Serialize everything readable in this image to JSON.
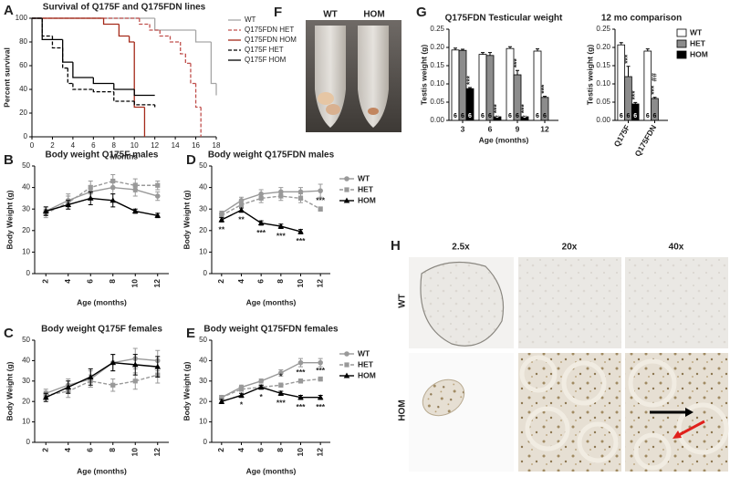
{
  "chart_data": [
    {
      "type": "step",
      "panel": "A",
      "title": "Survival of Q175F and Q175FDN lines",
      "x_label": "Months",
      "y_label": "Percent survival",
      "xlim": [
        0,
        18
      ],
      "xticks": [
        0,
        2,
        4,
        6,
        8,
        10,
        12,
        14,
        16,
        18
      ],
      "ylim": [
        0,
        100
      ],
      "yticks": [
        0,
        20,
        40,
        60,
        80,
        100
      ],
      "series": [
        {
          "name": "WT",
          "color": "#a6a6a6",
          "dash": false,
          "x": [
            0,
            12,
            16,
            17.5,
            18
          ],
          "values": [
            100,
            90,
            80,
            45,
            35
          ]
        },
        {
          "name": "Q175FDN HET",
          "color": "#c0504d",
          "dash": true,
          "x": [
            0,
            10.5,
            11.5,
            12.5,
            13.5,
            14.5,
            15,
            15.5,
            16,
            16.5
          ],
          "values": [
            100,
            95,
            90,
            85,
            80,
            70,
            62,
            45,
            25,
            0
          ]
        },
        {
          "name": "Q175FDN HOM",
          "color": "#a52a1a",
          "dash": false,
          "x": [
            0,
            7,
            8.5,
            9.5,
            10,
            11
          ],
          "values": [
            100,
            95,
            85,
            80,
            25,
            0
          ]
        },
        {
          "name": "Q175F HET",
          "color": "#000000",
          "dash": true,
          "x": [
            0,
            1,
            2,
            3,
            3.5,
            4,
            6,
            8,
            10,
            12
          ],
          "values": [
            100,
            85,
            75,
            58,
            45,
            40,
            38,
            30,
            27,
            25
          ]
        },
        {
          "name": "Q175F HOM",
          "color": "#000000",
          "dash": false,
          "x": [
            0,
            1,
            3,
            4,
            6,
            8,
            10,
            12
          ],
          "values": [
            100,
            82,
            63,
            50,
            45,
            40,
            35,
            35
          ]
        }
      ]
    },
    {
      "type": "line",
      "panel": "B",
      "title": "Body weight Q175F males",
      "x_label": "Age (months)",
      "y_label": "Body Weight (g)",
      "categories": [
        "2",
        "4",
        "6",
        "8",
        "10",
        "12"
      ],
      "ylim": [
        0,
        50
      ],
      "yticks": [
        0,
        10,
        20,
        30,
        40,
        50
      ],
      "series": [
        {
          "color": "#999999",
          "dash": false,
          "marker": "circle",
          "values": [
            29,
            34,
            38,
            40,
            39,
            36
          ],
          "errors": [
            2,
            3,
            3,
            3,
            3,
            2
          ]
        },
        {
          "color": "#999999",
          "dash": true,
          "marker": "square",
          "values": [
            28,
            33,
            40,
            43,
            41,
            41
          ],
          "errors": [
            2,
            3,
            3,
            3,
            3,
            2
          ]
        },
        {
          "color": "#000000",
          "dash": false,
          "marker": "triangle",
          "values": [
            29,
            32,
            35,
            34,
            29,
            27
          ],
          "errors": [
            2,
            2,
            3,
            3,
            1,
            1
          ]
        }
      ]
    },
    {
      "type": "line",
      "panel": "C",
      "title": "Body weight Q175F females",
      "x_label": "Age (months)",
      "y_label": "Body Weight (g)",
      "categories": [
        "2",
        "4",
        "6",
        "8",
        "10",
        "12"
      ],
      "ylim": [
        0,
        50
      ],
      "yticks": [
        0,
        10,
        20,
        30,
        40,
        50
      ],
      "series": [
        {
          "color": "#999999",
          "dash": false,
          "marker": "circle",
          "values": [
            24,
            28,
            31,
            39,
            41,
            40
          ],
          "errors": [
            2,
            3,
            4,
            4,
            5,
            5
          ]
        },
        {
          "color": "#999999",
          "dash": true,
          "marker": "square",
          "values": [
            23,
            25,
            30,
            28,
            30,
            33
          ],
          "errors": [
            2,
            3,
            3,
            3,
            4,
            4
          ]
        },
        {
          "color": "#000000",
          "dash": false,
          "marker": "triangle",
          "values": [
            22,
            27,
            32,
            39,
            38,
            37
          ],
          "errors": [
            2,
            3,
            4,
            4,
            5,
            5
          ]
        }
      ]
    },
    {
      "type": "line",
      "panel": "D",
      "title": "Body weight Q175FDN males",
      "x_label": "Age (months)",
      "y_label": "Body Weight (g)",
      "categories": [
        "2",
        "4",
        "6",
        "8",
        "10",
        "12"
      ],
      "ylim": [
        0,
        50
      ],
      "yticks": [
        0,
        10,
        20,
        30,
        40,
        50
      ],
      "series": [
        {
          "name": "WT",
          "color": "#999999",
          "dash": false,
          "marker": "circle",
          "values": [
            28,
            34,
            37,
            38,
            38,
            38.5
          ],
          "errors": [
            1,
            1.5,
            2,
            2,
            2,
            3
          ]
        },
        {
          "name": "HET",
          "color": "#999999",
          "dash": true,
          "marker": "square",
          "values": [
            27,
            32,
            35,
            36,
            35,
            30
          ],
          "errors": [
            1,
            1.5,
            2,
            2,
            2,
            1
          ],
          "significance": [
            null,
            null,
            null,
            null,
            null,
            "***"
          ]
        },
        {
          "name": "HOM",
          "color": "#000000",
          "dash": false,
          "marker": "triangle",
          "values": [
            25,
            29.5,
            23.5,
            22,
            19.5,
            null
          ],
          "errors": [
            1,
            1,
            1,
            1,
            1,
            null
          ],
          "significance": [
            "**",
            "**",
            "***",
            "***",
            "***",
            null
          ]
        }
      ]
    },
    {
      "type": "line",
      "panel": "E",
      "title": "Body weight Q175FDN females",
      "x_label": "Age (months)",
      "y_label": "Body Weight (g)",
      "categories": [
        "2",
        "4",
        "6",
        "8",
        "10",
        "12"
      ],
      "ylim": [
        0,
        50
      ],
      "yticks": [
        0,
        10,
        20,
        30,
        40,
        50
      ],
      "series": [
        {
          "name": "WT",
          "color": "#999999",
          "dash": false,
          "marker": "circle",
          "values": [
            22,
            27,
            30,
            34,
            39,
            39
          ],
          "errors": [
            1,
            1,
            1,
            1.5,
            2,
            2
          ]
        },
        {
          "name": "HET",
          "color": "#999999",
          "dash": true,
          "marker": "square",
          "values": [
            22,
            26,
            27,
            28,
            30,
            31
          ],
          "errors": [
            1,
            1,
            1,
            1,
            1,
            1
          ],
          "significance": [
            null,
            null,
            null,
            "*",
            "***",
            "***"
          ]
        },
        {
          "name": "HOM",
          "color": "#000000",
          "dash": false,
          "marker": "triangle",
          "values": [
            20,
            23,
            27,
            24,
            22,
            22
          ],
          "errors": [
            1,
            1,
            1,
            1,
            1,
            1
          ],
          "significance": [
            null,
            "*",
            "*",
            "***",
            "***",
            "***"
          ]
        }
      ]
    },
    {
      "type": "bar",
      "panel": "G",
      "title": "Q175FDN Testicular weight",
      "x_label": "Age (months)",
      "y_label": "Testis weight (g)",
      "categories": [
        "3",
        "6",
        "9",
        "12"
      ],
      "ylim": [
        0,
        0.25
      ],
      "yticks": [
        {
          "value": 0,
          "label": "0.00"
        },
        0.05,
        {
          "value": 0.1,
          "label": "0.10"
        },
        0.15,
        {
          "value": 0.2,
          "label": "0.20"
        },
        0.25
      ],
      "series": [
        {
          "color": "#ffffff",
          "values": [
            0.193,
            0.181,
            0.197,
            0.19
          ],
          "errors": [
            0.005,
            0.005,
            0.005,
            0.006
          ],
          "n": [
            6,
            6,
            6,
            6
          ]
        },
        {
          "color": "#8c8c8c",
          "values": [
            0.192,
            0.178,
            0.125,
            0.063
          ],
          "errors": [
            0.003,
            0.008,
            0.012,
            0.003
          ],
          "n": [
            6,
            6,
            6,
            6
          ],
          "significance": [
            null,
            null,
            "***",
            "***"
          ]
        },
        {
          "color": "#000000",
          "values": [
            0.087,
            0.01,
            0.01,
            0
          ],
          "errors": [
            0.003,
            0.002,
            0.002,
            0
          ],
          "n": [
            6,
            3,
            3,
            0
          ],
          "significance": [
            "***",
            "***",
            "***",
            null
          ]
        }
      ]
    },
    {
      "type": "bar",
      "title": "12 mo comparison",
      "y_label": "Testis weight (g)",
      "rotate_categories": true,
      "categories": [
        "Q175F",
        "Q175FDN"
      ],
      "ylim": [
        0,
        0.25
      ],
      "yticks": [
        {
          "value": 0,
          "label": "0.00"
        },
        0.05,
        {
          "value": 0.1,
          "label": "0.10"
        },
        0.15,
        {
          "value": 0.2,
          "label": "0.20"
        },
        0.25
      ],
      "series": [
        {
          "name": "WT",
          "color": "#ffffff",
          "values": [
            0.207,
            0.19
          ],
          "errors": [
            0.006,
            0.006
          ],
          "n": [
            6,
            6
          ]
        },
        {
          "name": "HET",
          "color": "#8c8c8c",
          "values": [
            0.12,
            0.06
          ],
          "errors": [
            0.028,
            0.003
          ],
          "n": [
            6,
            6
          ],
          "significance": [
            "***",
            "***"
          ],
          "significance2": [
            null,
            "##"
          ]
        },
        {
          "name": "HOM",
          "color": "#000000",
          "values": [
            0.045,
            0
          ],
          "errors": [
            0.004,
            0
          ],
          "n": [
            6,
            0
          ],
          "significance": [
            "***",
            null
          ]
        }
      ]
    }
  ],
  "photo": {
    "panel": "F",
    "labels": [
      "WT",
      "HOM"
    ]
  },
  "micrographs": {
    "panel": "H",
    "columns": [
      "2.5x",
      "20x",
      "40x"
    ],
    "rows": [
      "WT",
      "HOM"
    ]
  }
}
